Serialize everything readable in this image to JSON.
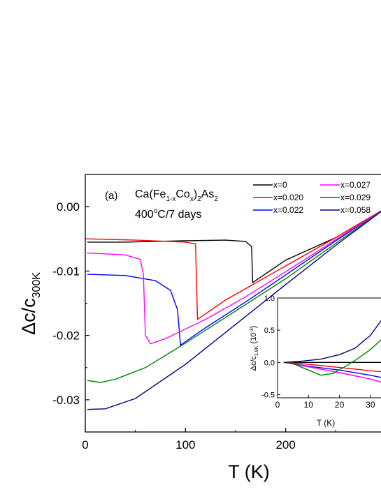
{
  "chart_data": {
    "type": "line",
    "panel_label": "(a)",
    "annotation_formula": {
      "base": [
        "Ca(Fe",
        "Co",
        ")",
        "As"
      ],
      "subs": [
        "1-x",
        "x",
        "2",
        "2"
      ]
    },
    "annotation_anneal": {
      "pre": "400",
      "sup": "o",
      "post": "C/7 days"
    },
    "ylabel": {
      "base": "Δc/c",
      "sub": "300K"
    },
    "xlabel": "T (K)",
    "xlim": [
      0,
      300
    ],
    "ylim": [
      -0.035,
      0.005
    ],
    "xticks": [
      0,
      100,
      200
    ],
    "yticks": [
      0.0,
      -0.01,
      -0.02,
      -0.03
    ],
    "ytick_labels": [
      "0.00",
      "-0.01",
      "-0.02",
      "-0.03"
    ],
    "legend_position": "top-right",
    "series": [
      {
        "name": "x=0",
        "color": "#000000",
        "points": [
          [
            2,
            -0.0055
          ],
          [
            40,
            -0.0055
          ],
          [
            100,
            -0.0053
          ],
          [
            140,
            -0.0052
          ],
          [
            160,
            -0.0054
          ],
          [
            166,
            -0.0062
          ],
          [
            167,
            -0.0118
          ],
          [
            200,
            -0.0083
          ],
          [
            250,
            -0.0048
          ],
          [
            300,
            -0.0002
          ]
        ]
      },
      {
        "name": "x=0.020",
        "color": "#ff0000",
        "points": [
          [
            2,
            -0.005
          ],
          [
            50,
            -0.0052
          ],
          [
            100,
            -0.0055
          ],
          [
            110,
            -0.0058
          ],
          [
            112,
            -0.0175
          ],
          [
            140,
            -0.0145
          ],
          [
            200,
            -0.0092
          ],
          [
            250,
            -0.0048
          ],
          [
            300,
            -0.0002
          ]
        ]
      },
      {
        "name": "x=0.022",
        "color": "#0000ff",
        "points": [
          [
            2,
            -0.0105
          ],
          [
            40,
            -0.0107
          ],
          [
            70,
            -0.0115
          ],
          [
            85,
            -0.013
          ],
          [
            92,
            -0.016
          ],
          [
            95,
            -0.0215
          ],
          [
            120,
            -0.0188
          ],
          [
            160,
            -0.0148
          ],
          [
            200,
            -0.0106
          ],
          [
            250,
            -0.0053
          ],
          [
            300,
            -0.0002
          ]
        ]
      },
      {
        "name": "x=0.027",
        "color": "#ff00ff",
        "points": [
          [
            2,
            -0.0072
          ],
          [
            40,
            -0.0075
          ],
          [
            55,
            -0.0082
          ],
          [
            58,
            -0.0105
          ],
          [
            60,
            -0.02
          ],
          [
            65,
            -0.0213
          ],
          [
            80,
            -0.0205
          ],
          [
            120,
            -0.0175
          ],
          [
            160,
            -0.014
          ],
          [
            200,
            -0.0101
          ],
          [
            250,
            -0.0051
          ],
          [
            300,
            -0.0002
          ]
        ]
      },
      {
        "name": "x=0.029",
        "color": "#008000",
        "points": [
          [
            2,
            -0.027
          ],
          [
            15,
            -0.0273
          ],
          [
            30,
            -0.0268
          ],
          [
            60,
            -0.025
          ],
          [
            100,
            -0.0212
          ],
          [
            150,
            -0.0162
          ],
          [
            200,
            -0.0112
          ],
          [
            250,
            -0.0057
          ],
          [
            300,
            -0.0002
          ]
        ]
      },
      {
        "name": "x=0.058",
        "color": "#000080",
        "points": [
          [
            2,
            -0.0315
          ],
          [
            20,
            -0.0314
          ],
          [
            50,
            -0.0298
          ],
          [
            100,
            -0.0245
          ],
          [
            150,
            -0.0183
          ],
          [
            200,
            -0.0121
          ],
          [
            250,
            -0.006
          ],
          [
            300,
            -0.0002
          ]
        ]
      }
    ],
    "inset": {
      "ylabel": {
        "base": "Δc/c",
        "sub": "1.8K",
        "tail": " (10",
        "sup": "-3",
        "end": ")"
      },
      "xlabel": "T (K)",
      "xlim": [
        0,
        35
      ],
      "ylim": [
        -0.55,
        1.0
      ],
      "xticks": [
        0,
        10,
        20,
        30
      ],
      "yticks": [
        1.0,
        0.5,
        0.0,
        -0.5
      ],
      "ytick_labels": [
        "1.0",
        "0.5",
        "0.0",
        "-0.5"
      ],
      "series": [
        {
          "name": "x=0",
          "color": "#000000",
          "points": [
            [
              2,
              0
            ],
            [
              10,
              0
            ],
            [
              20,
              0
            ],
            [
              30,
              0
            ],
            [
              35,
              0
            ]
          ]
        },
        {
          "name": "x=0.020",
          "color": "#ff0000",
          "points": [
            [
              2,
              0
            ],
            [
              10,
              -0.03
            ],
            [
              20,
              -0.08
            ],
            [
              30,
              -0.13
            ],
            [
              35,
              -0.15
            ]
          ]
        },
        {
          "name": "x=0.022",
          "color": "#0000ff",
          "points": [
            [
              2,
              0
            ],
            [
              10,
              -0.06
            ],
            [
              20,
              -0.12
            ],
            [
              30,
              -0.2
            ],
            [
              35,
              -0.25
            ]
          ]
        },
        {
          "name": "x=0.027",
          "color": "#ff00ff",
          "points": [
            [
              2,
              0
            ],
            [
              10,
              -0.07
            ],
            [
              20,
              -0.16
            ],
            [
              30,
              -0.26
            ],
            [
              35,
              -0.33
            ]
          ]
        },
        {
          "name": "x=0.029",
          "color": "#008000",
          "points": [
            [
              2,
              0
            ],
            [
              5,
              -0.02
            ],
            [
              10,
              -0.12
            ],
            [
              14,
              -0.2
            ],
            [
              18,
              -0.17
            ],
            [
              22,
              -0.06
            ],
            [
              26,
              0.06
            ],
            [
              30,
              0.2
            ],
            [
              35,
              0.42
            ]
          ]
        },
        {
          "name": "x=0.058",
          "color": "#000080",
          "points": [
            [
              2,
              0
            ],
            [
              8,
              0.02
            ],
            [
              14,
              0.05
            ],
            [
              20,
              0.12
            ],
            [
              25,
              0.22
            ],
            [
              30,
              0.42
            ],
            [
              35,
              0.75
            ]
          ]
        }
      ]
    }
  }
}
